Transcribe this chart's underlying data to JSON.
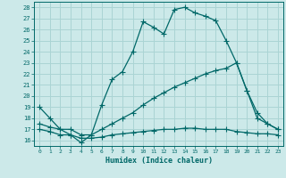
{
  "xlabel": "Humidex (Indice chaleur)",
  "bg_color": "#cce9e9",
  "grid_color": "#aad4d4",
  "line_color": "#006868",
  "xlim": [
    -0.5,
    23.5
  ],
  "ylim": [
    15.5,
    28.5
  ],
  "xticks": [
    0,
    1,
    2,
    3,
    4,
    5,
    6,
    7,
    8,
    9,
    10,
    11,
    12,
    13,
    14,
    15,
    16,
    17,
    18,
    19,
    20,
    21,
    22,
    23
  ],
  "yticks": [
    16,
    17,
    18,
    19,
    20,
    21,
    22,
    23,
    24,
    25,
    26,
    27,
    28
  ],
  "line1_x": [
    0,
    1,
    2,
    3,
    4,
    5,
    6,
    7,
    8,
    9,
    10,
    11,
    12,
    13,
    14,
    15,
    16,
    17,
    18,
    19,
    20,
    21,
    22,
    23
  ],
  "line1_y": [
    19.0,
    18.0,
    17.0,
    16.5,
    15.8,
    16.5,
    19.2,
    21.5,
    22.2,
    24.0,
    26.7,
    26.2,
    25.6,
    27.8,
    28.0,
    27.5,
    27.2,
    26.8,
    25.0,
    23.0,
    20.5,
    18.5,
    17.5,
    17.0
  ],
  "line2_x": [
    0,
    1,
    2,
    3,
    4,
    5,
    6,
    7,
    8,
    9,
    10,
    11,
    12,
    13,
    14,
    15,
    16,
    17,
    18,
    19,
    20,
    21,
    22,
    23
  ],
  "line2_y": [
    17.5,
    17.2,
    17.0,
    17.0,
    16.5,
    16.5,
    17.0,
    17.5,
    18.0,
    18.5,
    19.2,
    19.8,
    20.3,
    20.8,
    21.2,
    21.6,
    22.0,
    22.3,
    22.5,
    23.0,
    20.5,
    18.0,
    17.5,
    17.0
  ],
  "line3_x": [
    0,
    1,
    2,
    3,
    4,
    5,
    6,
    7,
    8,
    9,
    10,
    11,
    12,
    13,
    14,
    15,
    16,
    17,
    18,
    19,
    20,
    21,
    22,
    23
  ],
  "line3_y": [
    17.0,
    16.8,
    16.5,
    16.5,
    16.2,
    16.2,
    16.3,
    16.5,
    16.6,
    16.7,
    16.8,
    16.9,
    17.0,
    17.0,
    17.1,
    17.1,
    17.0,
    17.0,
    17.0,
    16.8,
    16.7,
    16.6,
    16.6,
    16.5
  ]
}
